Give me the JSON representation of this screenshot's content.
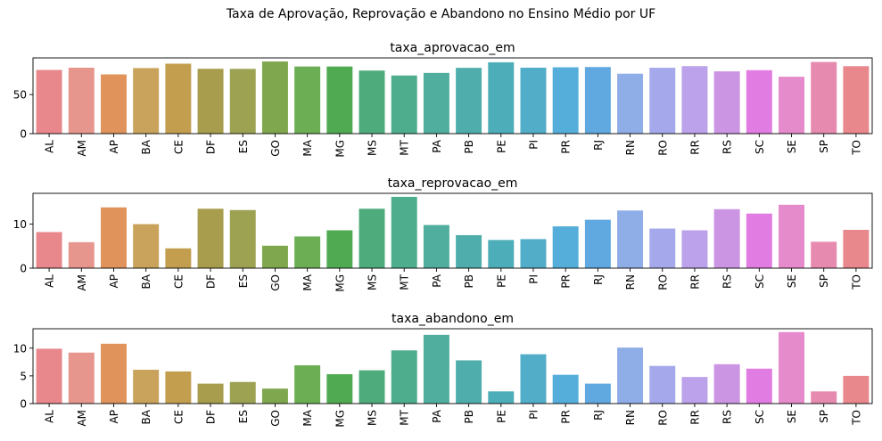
{
  "figure": {
    "suptitle": "Taxa de Aprovação, Reprovação e Abandono no Ensino Médio por UF"
  },
  "palette": [
    "#E8878C",
    "#E6968C",
    "#E0935A",
    "#C9A35C",
    "#C39E4F",
    "#A89D4C",
    "#9CA252",
    "#7FA74D",
    "#6BAE54",
    "#4FAA52",
    "#4EAB7B",
    "#4EAD8C",
    "#4FAE9E",
    "#4FAEAB",
    "#4DADB8",
    "#51ADC8",
    "#55AED9",
    "#5FA8E0",
    "#8FADE7",
    "#A5A9EB",
    "#BCA2EB",
    "#CC95E4",
    "#E17DE2",
    "#E58ACB",
    "#E78AB0"
  ],
  "chart_data": [
    {
      "type": "bar",
      "title": "taxa_aprovacao_em",
      "categories": [
        "AL",
        "AM",
        "AP",
        "BA",
        "CE",
        "DF",
        "ES",
        "GO",
        "MA",
        "MG",
        "MS",
        "MT",
        "PA",
        "PB",
        "PE",
        "PI",
        "PR",
        "RJ",
        "RN",
        "RO",
        "RR",
        "RS",
        "SC",
        "SE",
        "SP",
        "TO"
      ],
      "values": [
        81.5,
        84.4,
        75.8,
        83.9,
        89.5,
        83.0,
        82.9,
        92.3,
        85.9,
        85.9,
        80.7,
        74.4,
        77.7,
        84.2,
        91.3,
        84.4,
        84.9,
        85.2,
        76.7,
        84.3,
        86.4,
        79.7,
        81.2,
        72.8,
        91.7,
        86.3
      ],
      "yticks": [
        0,
        50
      ],
      "ylim": [
        0,
        96.9
      ],
      "xlabel": "",
      "ylabel": ""
    },
    {
      "type": "bar",
      "title": "taxa_reprovacao_em",
      "categories": [
        "AL",
        "AM",
        "AP",
        "BA",
        "CE",
        "DF",
        "ES",
        "GO",
        "MA",
        "MG",
        "MS",
        "MT",
        "PA",
        "PB",
        "PE",
        "PI",
        "PR",
        "RJ",
        "RN",
        "RO",
        "RR",
        "RS",
        "SC",
        "SE",
        "SP",
        "TO"
      ],
      "values": [
        8.2,
        5.9,
        13.8,
        10.0,
        4.5,
        13.5,
        13.2,
        5.1,
        7.2,
        8.6,
        13.5,
        16.2,
        9.8,
        7.5,
        6.4,
        6.6,
        9.5,
        11.0,
        13.1,
        9.0,
        8.6,
        13.4,
        12.4,
        14.4,
        6.0,
        8.7
      ],
      "yticks": [
        0,
        10
      ],
      "ylim": [
        0,
        17.0
      ],
      "xlabel": "",
      "ylabel": ""
    },
    {
      "type": "bar",
      "title": "taxa_abandono_em",
      "categories": [
        "AL",
        "AM",
        "AP",
        "BA",
        "CE",
        "DF",
        "ES",
        "GO",
        "MA",
        "MG",
        "MS",
        "MT",
        "PA",
        "PB",
        "PE",
        "PI",
        "PR",
        "RJ",
        "RN",
        "RO",
        "RR",
        "RS",
        "SC",
        "SE",
        "SP",
        "TO"
      ],
      "values": [
        9.9,
        9.2,
        10.8,
        6.1,
        5.8,
        3.6,
        3.9,
        2.7,
        6.9,
        5.3,
        6.0,
        9.6,
        12.4,
        7.8,
        2.2,
        8.9,
        5.2,
        3.6,
        10.1,
        6.8,
        4.8,
        7.1,
        6.3,
        12.9,
        2.2,
        5.0
      ],
      "yticks": [
        0,
        5,
        10
      ],
      "ylim": [
        0,
        13.5
      ],
      "xlabel": "",
      "ylabel": ""
    }
  ]
}
